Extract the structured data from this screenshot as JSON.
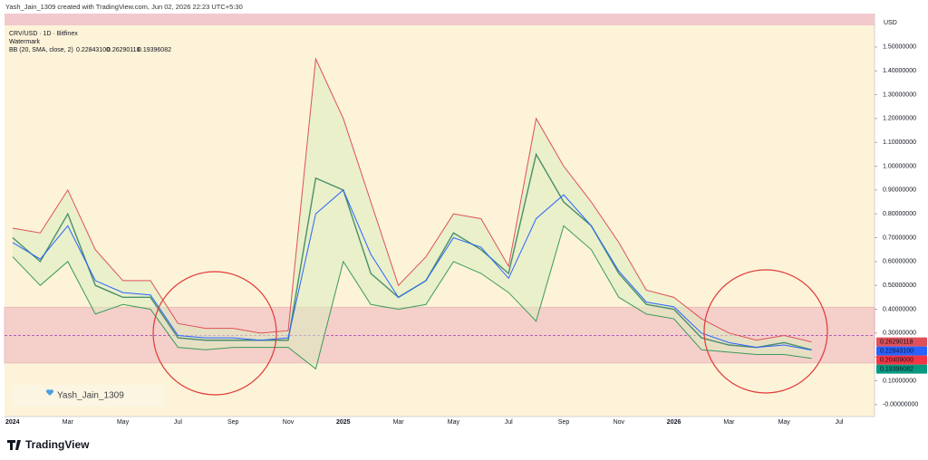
{
  "header": "Yash_Jain_1309 created with TradingView.com, Jun 02, 2026 22:23 UTC+5:30",
  "symbol": "CRV/USD · 1D · Bitfinex",
  "watermark_legend": "Watermark",
  "watermark": "Yash_Jain_1309",
  "brand": "TradingView",
  "chart_data": {
    "type": "line",
    "indicator": "BB (20, SMA, close, 2)",
    "currency": "USD",
    "categories": [
      "2024",
      null,
      "Mar",
      null,
      "May",
      null,
      "Jul",
      null,
      "Sep",
      null,
      "Nov",
      null,
      "2025",
      null,
      "Mar",
      null,
      "May",
      null,
      "Jul",
      null,
      "Sep",
      null,
      "Nov",
      null,
      "2026",
      null,
      "Mar",
      null,
      "May",
      null,
      "Jul"
    ],
    "series": [
      {
        "color": "#4a8f6a",
        "values": [
          0.7,
          0.6,
          0.8,
          0.5,
          0.45,
          0.45,
          0.28,
          0.27,
          0.27,
          0.27,
          0.27,
          0.95,
          0.9,
          0.55,
          0.45,
          0.52,
          0.72,
          0.65,
          0.55,
          1.05,
          0.85,
          0.75,
          0.55,
          0.42,
          0.4,
          0.28,
          0.25,
          0.24,
          0.26,
          0.23,
          null
        ]
      },
      {
        "color": "#2962ff",
        "values": [
          0.68,
          0.61,
          0.75,
          0.52,
          0.47,
          0.46,
          0.29,
          0.28,
          0.28,
          0.27,
          0.28,
          0.8,
          0.9,
          0.63,
          0.45,
          0.52,
          0.7,
          0.66,
          0.53,
          0.78,
          0.88,
          0.75,
          0.56,
          0.43,
          0.41,
          0.3,
          0.26,
          0.24,
          0.25,
          0.228431,
          null
        ]
      },
      {
        "color": "#e0505a",
        "values": [
          0.74,
          0.72,
          0.9,
          0.65,
          0.52,
          0.52,
          0.34,
          0.32,
          0.32,
          0.3,
          0.31,
          1.45,
          1.2,
          0.85,
          0.5,
          0.62,
          0.8,
          0.78,
          0.58,
          1.2,
          1.0,
          0.85,
          0.68,
          0.48,
          0.45,
          0.36,
          0.3,
          0.27,
          0.29,
          0.26290118,
          null
        ]
      },
      {
        "color": "#3a9a5a",
        "values": [
          0.62,
          0.5,
          0.6,
          0.38,
          0.42,
          0.4,
          0.24,
          0.23,
          0.24,
          0.24,
          0.24,
          0.15,
          0.6,
          0.42,
          0.4,
          0.42,
          0.6,
          0.55,
          0.47,
          0.35,
          0.75,
          0.65,
          0.45,
          0.38,
          0.36,
          0.23,
          0.22,
          0.21,
          0.21,
          0.19396082,
          null
        ]
      }
    ],
    "bb_values": [
      {
        "value": 0.228431,
        "label": "0.22843100",
        "color": "#2962ff"
      },
      {
        "value": 0.26290118,
        "label": "0.26290118",
        "color": "#e0505a"
      },
      {
        "value": 0.19396082,
        "label": "0.19396082",
        "color": "#089981"
      }
    ],
    "last_price": {
      "value": 0.20409,
      "label": "0.20409000",
      "color": "#f23645"
    },
    "zone": [
      0.175,
      0.408
    ],
    "dashed_level": 0.29,
    "ylim": [
      -0.05,
      1.64
    ],
    "yticks": [
      {
        "value": 0.0,
        "label": "-0.00000000"
      },
      {
        "value": 0.1,
        "label": "0.10000000"
      },
      {
        "value": 0.2,
        "label": "0.20000000"
      },
      {
        "value": 0.3,
        "label": "0.30000000"
      },
      {
        "value": 0.4,
        "label": "0.40000000"
      },
      {
        "value": 0.5,
        "label": "0.50000000"
      },
      {
        "value": 0.6,
        "label": "0.60000000"
      },
      {
        "value": 0.7,
        "label": "0.70000000"
      },
      {
        "value": 0.8,
        "label": "0.80000000"
      },
      {
        "value": 0.9,
        "label": "0.90000000"
      },
      {
        "value": 1.0,
        "label": "1.00000000"
      },
      {
        "value": 1.1,
        "label": "1.10000000"
      },
      {
        "value": 1.2,
        "label": "1.20000000"
      },
      {
        "value": 1.3,
        "label": "1.30000000"
      },
      {
        "value": 1.4,
        "label": "1.40000000"
      },
      {
        "value": 1.5,
        "label": "1.50000000"
      }
    ]
  }
}
